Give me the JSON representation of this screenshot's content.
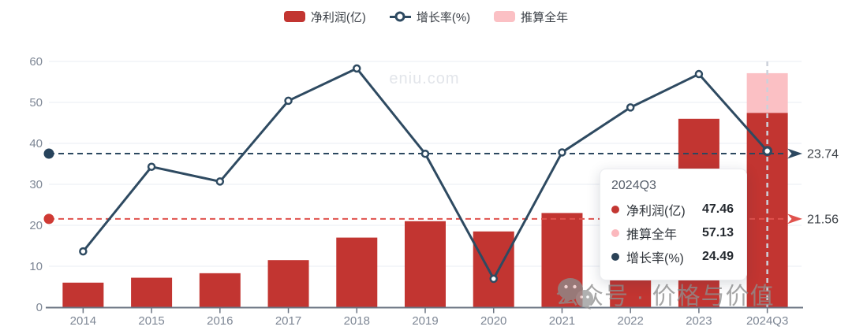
{
  "legend": {
    "items": [
      {
        "label": "净利润(亿)",
        "type": "bar",
        "color": "#c23531"
      },
      {
        "label": "增长率(%)",
        "type": "line",
        "color": "#2e4a61"
      },
      {
        "label": "推算全年",
        "type": "bar",
        "color": "#fbc0c4"
      }
    ]
  },
  "watermarks": {
    "center_text": "eniu.com",
    "bottom_text": "公众号 · 价格与价值"
  },
  "tooltip": {
    "title": "2024Q3",
    "rows": [
      {
        "label": "净利润(亿)",
        "value": "47.46",
        "color": "#c33732"
      },
      {
        "label": "推算全年",
        "value": "57.13",
        "color": "#fbb8bd"
      },
      {
        "label": "增长率(%)",
        "value": "24.49",
        "color": "#2b4257"
      }
    ]
  },
  "chart_data": {
    "type": "bar",
    "combo": "bar+line",
    "categories": [
      "2014",
      "2015",
      "2016",
      "2017",
      "2018",
      "2019",
      "2020",
      "2021",
      "2022",
      "2023",
      "2024Q3"
    ],
    "series": [
      {
        "name": "净利润(亿)",
        "type": "bar",
        "color": "#c23531",
        "values": [
          6.0,
          7.2,
          8.3,
          11.5,
          17.0,
          21.0,
          18.5,
          23.0,
          31.4,
          46.0,
          47.46
        ]
      },
      {
        "name": "推算全年",
        "type": "bar-estimate",
        "color": "#fbc0c4",
        "category": "2024Q3",
        "value": 57.13
      },
      {
        "name": "增长率(%)",
        "type": "line",
        "color": "#2e4a61",
        "yaxis": "hidden_right",
        "values": [
          -4.1,
          20.0,
          15.8,
          38.8,
          48.0,
          23.7,
          -11.9,
          24.1,
          36.9,
          46.4,
          24.49
        ]
      }
    ],
    "left_axis": {
      "min": 0,
      "max": 60,
      "ticks": [
        0,
        10,
        20,
        30,
        40,
        50,
        60
      ]
    },
    "hidden_right_axis": {
      "min": -20,
      "max": 50
    },
    "avg_markers": [
      {
        "series": "增长率(%)",
        "axis": "hidden_right",
        "value": 23.74,
        "label": "23.74",
        "line_color": "#2c4860",
        "dot_color": "#27435c"
      },
      {
        "series": "净利润(亿)",
        "axis": "left",
        "value": 21.56,
        "label": "21.56",
        "line_color": "#e0524d",
        "dot_color": "#cf3a34"
      }
    ],
    "crosshair_category": "2024Q3",
    "grid": true,
    "legend_position": "top"
  },
  "style_colors": {
    "gridline": "#e8ecf3",
    "axis_line": "#6b7482",
    "axis_label": "#7e8795",
    "marker_label": "#3c4147",
    "crosshair": "#ccd1da",
    "watermark_center": "#e2e5ea"
  }
}
